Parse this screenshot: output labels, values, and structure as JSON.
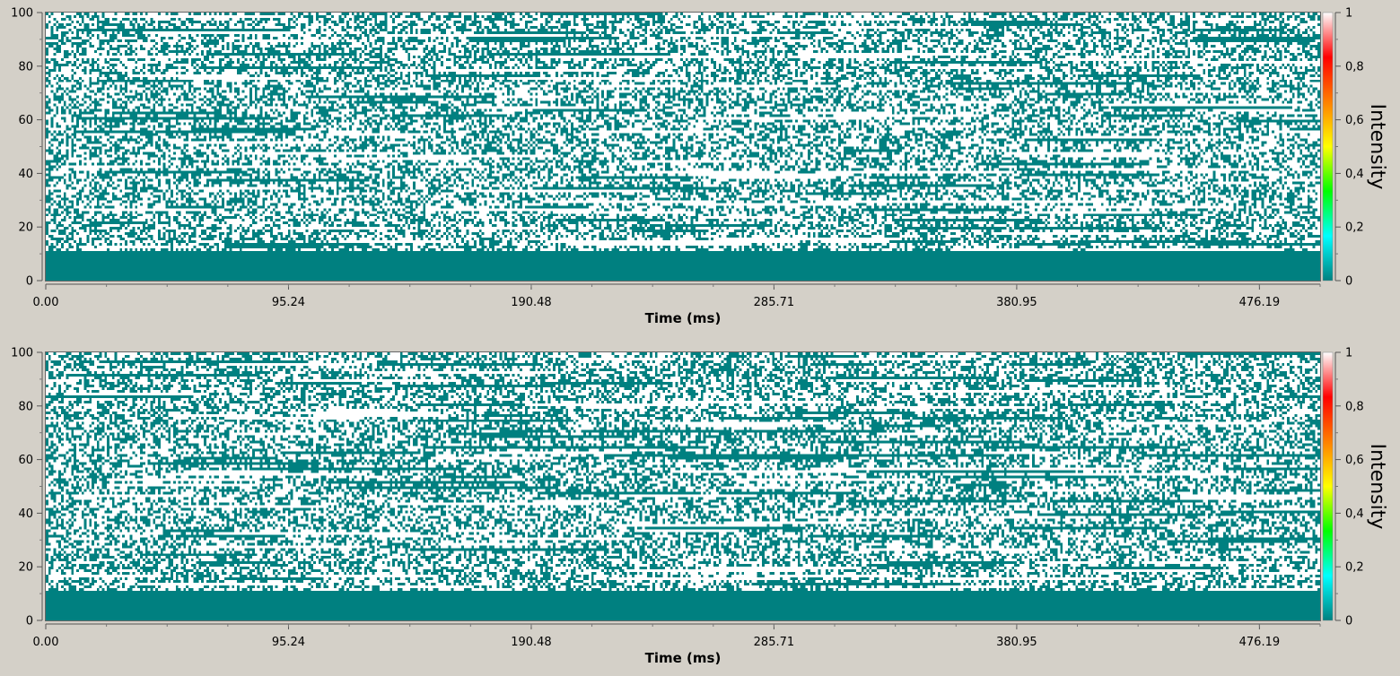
{
  "chart_data": [
    {
      "type": "heatmap",
      "xlabel": "Time (ms)",
      "x_ticks": [
        "0.00",
        "95.24",
        "190.48",
        "285.71",
        "380.95",
        "476.19"
      ],
      "x_tick_values": [
        0,
        95.24,
        190.48,
        285.71,
        380.95,
        476.19
      ],
      "xlim": [
        0,
        500
      ],
      "y_ticks": [
        "0",
        "20",
        "40",
        "60",
        "80",
        "100"
      ],
      "y_tick_values": [
        0,
        20,
        40,
        60,
        80,
        100
      ],
      "ylim": [
        0,
        100
      ],
      "colorbar": {
        "title": "Intensity",
        "ticks": [
          "0",
          "0,2",
          "0,4",
          "0,6",
          "0,8",
          "1"
        ],
        "tick_values": [
          0,
          0.2,
          0.4,
          0.6,
          0.8,
          1
        ],
        "colors": [
          "#008080",
          "#00ffff",
          "#00ff00",
          "#ffff00",
          "#ff8000",
          "#ff0000",
          "#ffffff"
        ]
      },
      "cell_colors": {
        "zero": "#008080",
        "one": "#ffffff"
      },
      "bottom_band": {
        "from_y": 0,
        "to_y": 11,
        "value": 0
      },
      "random_fill_fraction": 0.45,
      "seed": 12345
    },
    {
      "type": "heatmap",
      "xlabel": "Time (ms)",
      "x_ticks": [
        "0.00",
        "95.24",
        "190.48",
        "285.71",
        "380.95",
        "476.19"
      ],
      "x_tick_values": [
        0,
        95.24,
        190.48,
        285.71,
        380.95,
        476.19
      ],
      "xlim": [
        0,
        500
      ],
      "y_ticks": [
        "0",
        "20",
        "40",
        "60",
        "80",
        "100"
      ],
      "y_tick_values": [
        0,
        20,
        40,
        60,
        80,
        100
      ],
      "ylim": [
        0,
        100
      ],
      "colorbar": {
        "title": "Intensity",
        "ticks": [
          "0",
          "0,2",
          "0,4",
          "0,6",
          "0,8",
          "1"
        ],
        "tick_values": [
          0,
          0.2,
          0.4,
          0.6,
          0.8,
          1
        ],
        "colors": [
          "#008080",
          "#00ffff",
          "#00ff00",
          "#ffff00",
          "#ff8000",
          "#ff0000",
          "#ffffff"
        ]
      },
      "cell_colors": {
        "zero": "#008080",
        "one": "#ffffff"
      },
      "bottom_band": {
        "from_y": 0,
        "to_y": 11,
        "value": 0
      },
      "random_fill_fraction": 0.45,
      "seed": 67890
    }
  ]
}
